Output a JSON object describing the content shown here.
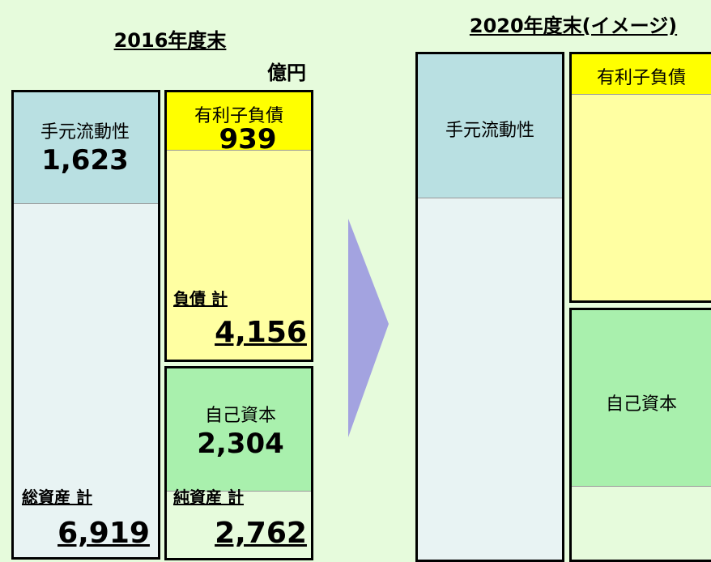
{
  "left": {
    "title": "2016年度末",
    "unit": "億円",
    "assets": {
      "liquidity_label": "手元流動性",
      "liquidity_value": "1,623",
      "total_label": "総資産 計",
      "total_value": "6,919"
    },
    "liabilities": {
      "debt_label": "有利子負債",
      "debt_value": "939",
      "total_label": "負債 計",
      "total_value": "4,156"
    },
    "equity": {
      "label": "自己資本",
      "value": "2,304",
      "total_label": "純資産 計",
      "total_value": "2,762"
    }
  },
  "right": {
    "title": "2020年度末(イメージ)",
    "liquidity_label": "手元流動性",
    "debt_label": "有利子負債",
    "equity_label": "自己資本"
  }
}
